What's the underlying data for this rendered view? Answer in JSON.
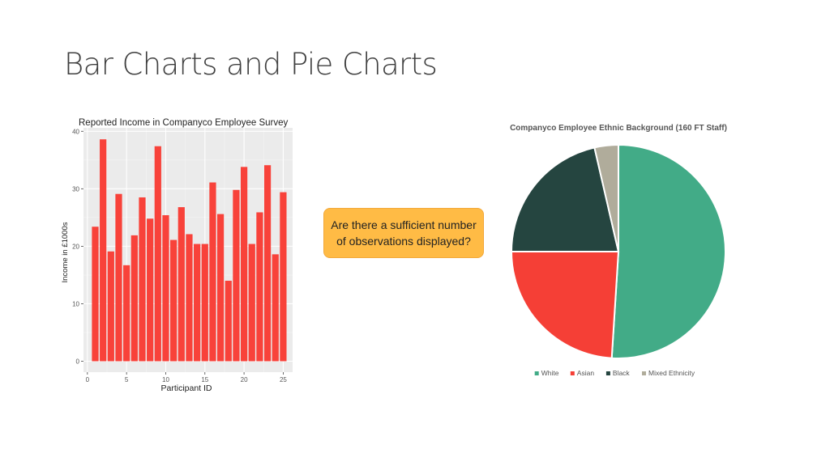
{
  "slide": {
    "title": "Bar Charts and Pie Charts"
  },
  "callout": {
    "text": "Are there a sufficient number of observations displayed?"
  },
  "colors": {
    "bar": "#f8423a",
    "panel": "#ebebeb",
    "grid": "#ffffff",
    "white": "#42ab87",
    "asian": "#f53f36",
    "black": "#254540",
    "mixed": "#b0ac9b",
    "callout": "#ffbb45"
  },
  "chart_data": [
    {
      "type": "bar",
      "title": "Reported Income in Companyco Employee Survey",
      "xlabel": "Participant ID",
      "ylabel": "Income in £1000s",
      "x": [
        1,
        2,
        3,
        4,
        5,
        6,
        7,
        8,
        9,
        10,
        11,
        12,
        13,
        14,
        15,
        16,
        17,
        18,
        19,
        20,
        21,
        22,
        23,
        24,
        25
      ],
      "values": [
        23.4,
        38.6,
        19.1,
        29.1,
        16.7,
        21.9,
        28.5,
        24.8,
        37.4,
        25.4,
        21.1,
        26.8,
        22.1,
        20.4,
        20.4,
        31.1,
        25.6,
        14.0,
        29.8,
        33.8,
        20.4,
        25.9,
        34.1,
        18.6,
        29.4
      ],
      "xlim": [
        -0.5,
        26.2
      ],
      "ylim": [
        -1.9,
        40.6
      ],
      "xticks": [
        "0",
        "5",
        "10",
        "15",
        "20",
        "25"
      ],
      "yticks": [
        "0",
        "10",
        "20",
        "30",
        "40"
      ],
      "grid": true,
      "theme": "ggplot"
    },
    {
      "type": "pie",
      "title": "Companyco Employee Ethnic Background (160 FT Staff)",
      "labels": [
        "White",
        "Asian",
        "Black",
        "Mixed Ethnicity"
      ],
      "values": [
        0.51,
        0.24,
        0.214,
        0.036
      ],
      "legend": "bottom"
    }
  ]
}
